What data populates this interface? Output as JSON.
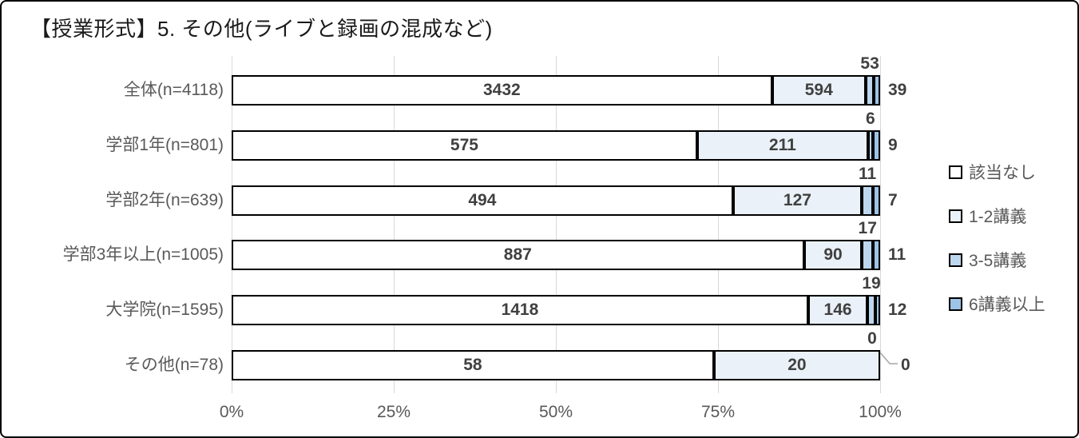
{
  "chart_data": {
    "type": "bar",
    "variant": "stacked-100pct",
    "orientation": "horizontal",
    "title": "【授業形式】5. その他(ライブと録画の混成など)",
    "categories": [
      "全体(n=4118)",
      "学部1年(n=801)",
      "学部2年(n=639)",
      "学部3年以上(n=1005)",
      "大学院(n=1595)",
      "その他(n=78)"
    ],
    "totals": [
      4118,
      801,
      639,
      1005,
      1595,
      78
    ],
    "series": [
      {
        "name": "該当なし",
        "key": "none",
        "color": "#ffffff",
        "values": [
          3432,
          575,
          494,
          887,
          1418,
          58
        ]
      },
      {
        "name": "1-2講義",
        "key": "lectures-1-2",
        "color": "#eaf1f8",
        "values": [
          594,
          211,
          127,
          90,
          146,
          20
        ]
      },
      {
        "name": "3-5講義",
        "key": "lectures-3-5",
        "color": "#bdd7ee",
        "values": [
          53,
          6,
          11,
          17,
          19,
          0
        ]
      },
      {
        "name": "6講義以上",
        "key": "lectures-6-plus",
        "color": "#9dc3e6",
        "values": [
          39,
          9,
          7,
          11,
          12,
          0
        ]
      }
    ],
    "x_ticks": [
      "0%",
      "25%",
      "50%",
      "75%",
      "100%"
    ],
    "xlim": [
      0,
      1
    ],
    "grid": true,
    "legend_position": "right"
  },
  "style": {
    "segment_border": "#000000",
    "gridline": "#d9d9d9",
    "category_text": "#595959",
    "axis_text": "#595959",
    "value_text": "#404040",
    "legend_text": "#595959",
    "leader_line": "#a6a6a6",
    "figure_border": "#000000",
    "background": "#ffffff"
  }
}
